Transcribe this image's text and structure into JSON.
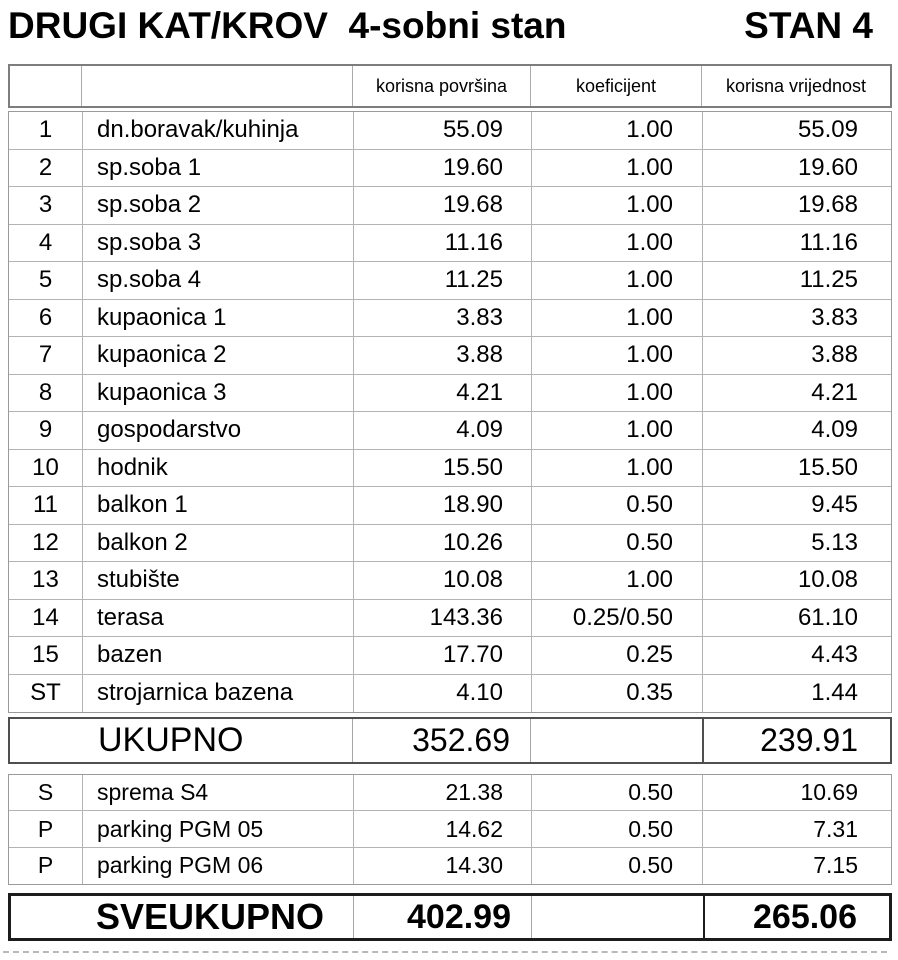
{
  "page": {
    "title_left": "DRUGI KAT/KROV  4-sobni stan",
    "title_right": "STAN 4"
  },
  "table": {
    "columns": {
      "area": "korisna površina",
      "coef": "koeficijent",
      "value": "korisna vrijednost"
    },
    "rows": [
      {
        "num": "1",
        "name": "dn.boravak/kuhinja",
        "area": "55.09",
        "coef": "1.00",
        "value": "55.09"
      },
      {
        "num": "2",
        "name": "sp.soba 1",
        "area": "19.60",
        "coef": "1.00",
        "value": "19.60"
      },
      {
        "num": "3",
        "name": "sp.soba 2",
        "area": "19.68",
        "coef": "1.00",
        "value": "19.68"
      },
      {
        "num": "4",
        "name": "sp.soba 3",
        "area": "11.16",
        "coef": "1.00",
        "value": "11.16"
      },
      {
        "num": "5",
        "name": "sp.soba 4",
        "area": "11.25",
        "coef": "1.00",
        "value": "11.25"
      },
      {
        "num": "6",
        "name": "kupaonica 1",
        "area": "3.83",
        "coef": "1.00",
        "value": "3.83"
      },
      {
        "num": "7",
        "name": "kupaonica 2",
        "area": "3.88",
        "coef": "1.00",
        "value": "3.88"
      },
      {
        "num": "8",
        "name": "kupaonica 3",
        "area": "4.21",
        "coef": "1.00",
        "value": "4.21"
      },
      {
        "num": "9",
        "name": "gospodarstvo",
        "area": "4.09",
        "coef": "1.00",
        "value": "4.09"
      },
      {
        "num": "10",
        "name": "hodnik",
        "area": "15.50",
        "coef": "1.00",
        "value": "15.50"
      },
      {
        "num": "11",
        "name": "balkon 1",
        "area": "18.90",
        "coef": "0.50",
        "value": "9.45"
      },
      {
        "num": "12",
        "name": "balkon 2",
        "area": "10.26",
        "coef": "0.50",
        "value": "5.13"
      },
      {
        "num": "13",
        "name": "stubište",
        "area": "10.08",
        "coef": "1.00",
        "value": "10.08"
      },
      {
        "num": "14",
        "name": "terasa",
        "area": "143.36",
        "coef": "0.25/0.50",
        "value": "61.10"
      },
      {
        "num": "15",
        "name": "bazen",
        "area": "17.70",
        "coef": "0.25",
        "value": "4.43"
      },
      {
        "num": "ST",
        "name": "strojarnica bazena",
        "area": "4.10",
        "coef": "0.35",
        "value": "1.44"
      }
    ],
    "total": {
      "label": "UKUPNO",
      "area": "352.69",
      "value": "239.91"
    },
    "extras": [
      {
        "num": "S",
        "name": "sprema S4",
        "area": "21.38",
        "coef": "0.50",
        "value": "10.69"
      },
      {
        "num": "P",
        "name": "parking PGM 05",
        "area": "14.62",
        "coef": "0.50",
        "value": "7.31"
      },
      {
        "num": "P",
        "name": "parking PGM 06",
        "area": "14.30",
        "coef": "0.50",
        "value": "7.15"
      }
    ],
    "grand_total": {
      "label": "SVEUKUPNO",
      "area": "402.99",
      "value": "265.06"
    }
  },
  "colors": {
    "text": "#000000",
    "border_light": "#b3b3b3",
    "border_section": "#9a9a9a",
    "border_header": "#7d7d7d",
    "border_total": "#4f4f4f",
    "border_grand_total": "#1c1c1c",
    "background": "#ffffff"
  }
}
